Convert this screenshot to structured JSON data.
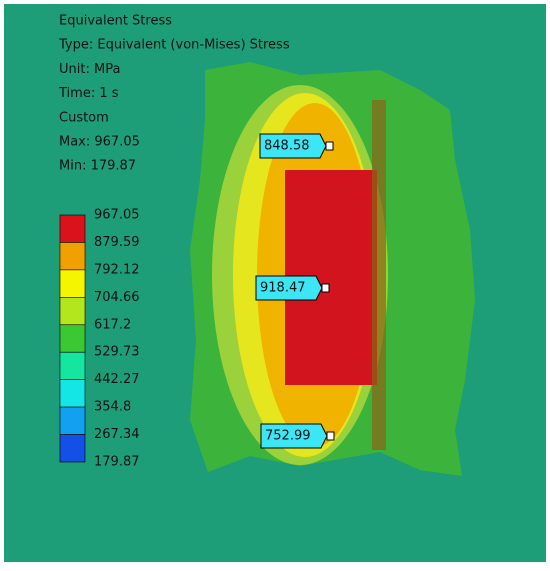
{
  "header": {
    "lines": [
      "Equivalent Stress",
      "Type: Equivalent (von-Mises) Stress",
      "Unit: MPa",
      "Time: 1 s",
      "Custom",
      "Max: 967.05",
      "Min: 179.87"
    ]
  },
  "legend": {
    "labels": [
      "967.05",
      "879.59",
      "792.12",
      "704.66",
      "617.2",
      "529.73",
      "442.27",
      "354.8",
      "267.34",
      "179.87"
    ],
    "colors": [
      "#d9121b",
      "#f0a000",
      "#f5f500",
      "#b4e61e",
      "#3cc832",
      "#14e6a0",
      "#14e6e6",
      "#14a0f0",
      "#1450e6",
      "#0014e6"
    ]
  },
  "probes": [
    "848.58",
    "918.47",
    "752.99"
  ]
}
